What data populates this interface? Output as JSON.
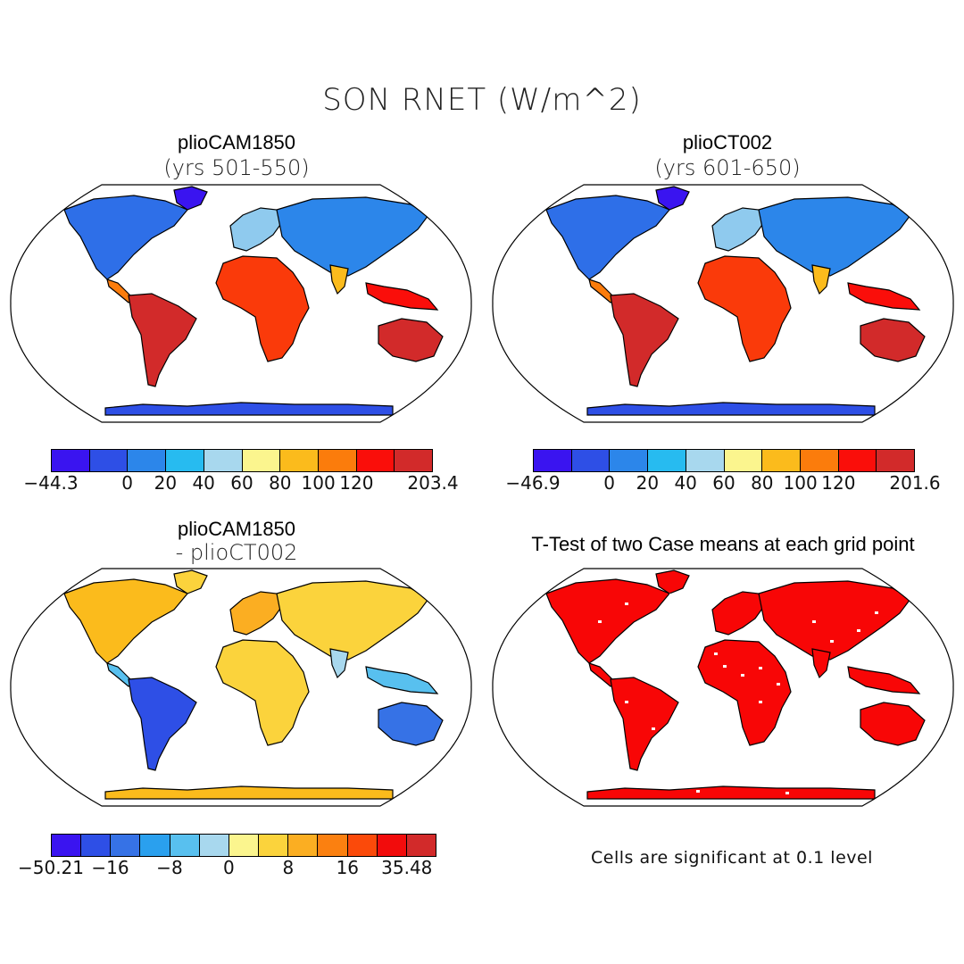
{
  "figure": {
    "title": "SON RNET (W/m^2)"
  },
  "panels": [
    {
      "id": "p1",
      "title": "plioCAM1850",
      "subtitle": "(yrs 501-550)",
      "colorbar": {
        "colors": [
          "#3a14f0",
          "#2e4fe6",
          "#2c86ea",
          "#27bbf0",
          "#a8d8ee",
          "#fbf58e",
          "#fbbb1c",
          "#fb7c0c",
          "#fa0e0a",
          "#d22a2a"
        ],
        "ticks": [
          "-44.3",
          "0",
          "20",
          "40",
          "60",
          "80",
          "100",
          "120",
          "203.4"
        ],
        "tick_positions_in_bins": [
          0,
          2,
          3,
          4,
          5,
          6,
          7,
          8,
          10
        ]
      }
    },
    {
      "id": "p2",
      "title": "plioCT002",
      "subtitle": "(yrs 601-650)",
      "colorbar": {
        "colors": [
          "#3a14f0",
          "#2e4fe6",
          "#2c86ea",
          "#27bbf0",
          "#a8d8ee",
          "#fbf58e",
          "#fbbb1c",
          "#fb7c0c",
          "#fa0e0a",
          "#d22a2a"
        ],
        "ticks": [
          "-46.9",
          "0",
          "20",
          "40",
          "60",
          "80",
          "100",
          "120",
          "201.6"
        ],
        "tick_positions_in_bins": [
          0,
          2,
          3,
          4,
          5,
          6,
          7,
          8,
          10
        ]
      }
    },
    {
      "id": "p3",
      "title": "plioCAM1850",
      "subtitle": "- plioCT002",
      "colorbar": {
        "colors": [
          "#3a14f0",
          "#2e4fe6",
          "#3672e6",
          "#2aa0ee",
          "#58c0ef",
          "#a8d8ee",
          "#fbf58e",
          "#fbd33c",
          "#fbae22",
          "#fb8010",
          "#fb4a0a",
          "#f20c0c",
          "#d22a2a"
        ],
        "ticks": [
          "-50.21",
          "-16",
          "-8",
          "0",
          "8",
          "16",
          "35.48"
        ],
        "tick_positions_in_bins": [
          0,
          2,
          4,
          6,
          8,
          10,
          12
        ]
      }
    },
    {
      "id": "p4",
      "title": "T-Test of two Case means at each grid point",
      "note": "Cells are significant at 0.1 level"
    }
  ]
}
